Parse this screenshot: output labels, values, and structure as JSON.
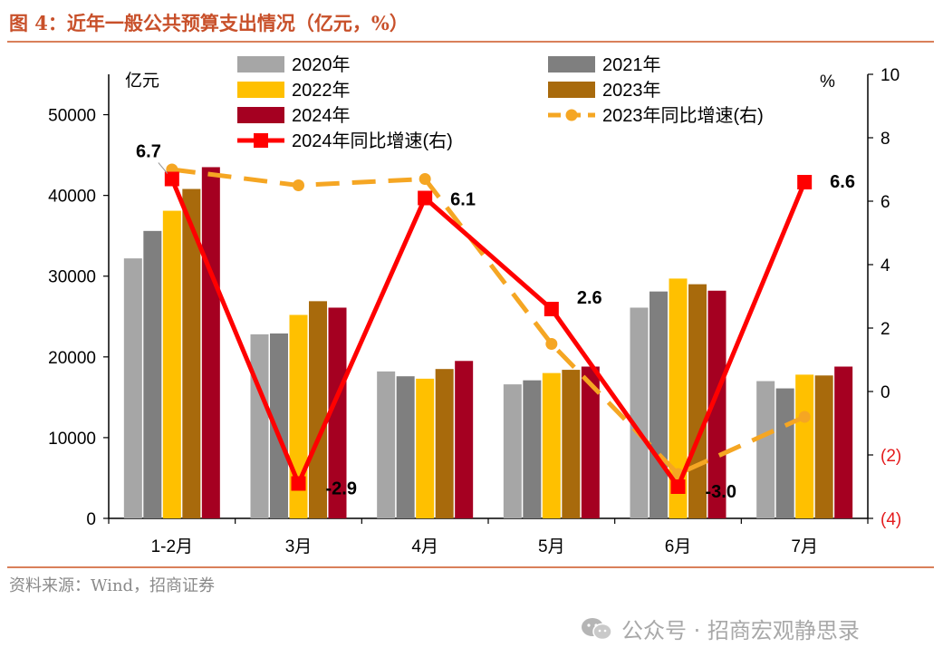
{
  "figure": {
    "title": "图 4：近年一般公共预算支出情况（亿元，%）",
    "source": "资料来源：Wind，招商证券",
    "watermark": "公众号 · 招商宏观静思录",
    "watermark_icon": "wechat-icon"
  },
  "chart_data": {
    "type": "bar",
    "categories": [
      "1-2月",
      "3月",
      "4月",
      "5月",
      "6月",
      "7月"
    ],
    "left_axis": {
      "label": "亿元",
      "min": 0,
      "max": 55000,
      "ticks": [
        "0",
        "10000",
        "20000",
        "30000",
        "40000",
        "50000"
      ],
      "tick_values": [
        0,
        10000,
        20000,
        30000,
        40000,
        50000
      ]
    },
    "right_axis": {
      "label": "%",
      "min": -4,
      "max": 10,
      "ticks": [
        "(4)",
        "(2)",
        "0",
        "2",
        "4",
        "6",
        "8",
        "10"
      ],
      "tick_values": [
        -4,
        -2,
        0,
        2,
        4,
        6,
        8,
        10
      ],
      "negative_color": "#e41a1c"
    },
    "series": [
      {
        "name": "2020年",
        "kind": "bar",
        "color": "#a6a6a6",
        "values": [
          32200,
          22800,
          18200,
          16600,
          26100,
          17000
        ]
      },
      {
        "name": "2021年",
        "kind": "bar",
        "color": "#7f7f7f",
        "values": [
          35600,
          22900,
          17600,
          17100,
          28100,
          16100
        ]
      },
      {
        "name": "2022年",
        "kind": "bar",
        "color": "#ffc000",
        "values": [
          38100,
          25200,
          17300,
          18000,
          29700,
          17800
        ]
      },
      {
        "name": "2023年",
        "kind": "bar",
        "color": "#a86a0c",
        "values": [
          40800,
          26900,
          18500,
          18400,
          29000,
          17700
        ]
      },
      {
        "name": "2024年",
        "kind": "bar",
        "color": "#a50021",
        "values": [
          43500,
          26100,
          19500,
          18800,
          28200,
          18800
        ]
      },
      {
        "name": "2023年同比增速(右)",
        "kind": "line",
        "style": "dashed",
        "axis": "right",
        "color": "#f5a623",
        "values": [
          7.0,
          6.5,
          6.7,
          1.5,
          -2.6,
          -0.8
        ]
      },
      {
        "name": "2024年同比增速(右)",
        "kind": "line",
        "style": "solid",
        "axis": "right",
        "color": "#ff0000",
        "values": [
          6.7,
          -2.9,
          6.1,
          2.6,
          -3.0,
          6.6
        ],
        "labels": [
          "6.7",
          "-2.9",
          "6.1",
          "2.6",
          "-3.0",
          "6.6"
        ]
      }
    ],
    "legend_order": [
      "2020年",
      "2021年",
      "2022年",
      "2023年",
      "2024年",
      "2023年同比增速(右)",
      "2024年同比增速(右)"
    ],
    "legend_position": "top"
  }
}
